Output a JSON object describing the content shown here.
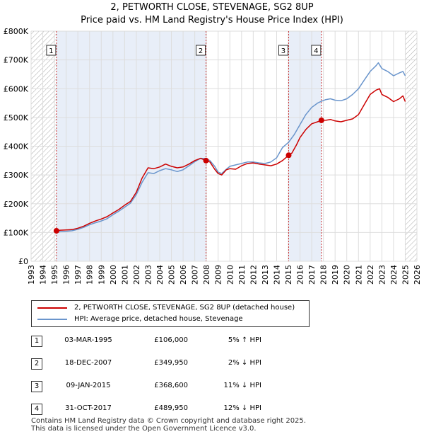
{
  "title": {
    "line1": "2, PETWORTH CLOSE, STEVENAGE, SG2 8UP",
    "line2": "Price paid vs. HM Land Registry's House Price Index (HPI)"
  },
  "colors": {
    "property": "#cc0000",
    "hpi": "#6a95cc",
    "marker_line": "#cc3333",
    "shade": "#e8eef8",
    "hatch": "#999999",
    "grid": "#dddddd"
  },
  "legend": {
    "property_label": "2, PETWORTH CLOSE, STEVENAGE, SG2 8UP (detached house)",
    "hpi_label": "HPI: Average price, detached house, Stevenage"
  },
  "transactions": [
    {
      "num": "1",
      "date": "03-MAR-1995",
      "price": "£106,000",
      "hpi": "5% ↑ HPI"
    },
    {
      "num": "2",
      "date": "18-DEC-2007",
      "price": "£349,950",
      "hpi": "2% ↓ HPI"
    },
    {
      "num": "3",
      "date": "09-JAN-2015",
      "price": "£368,600",
      "hpi": "11% ↓ HPI"
    },
    {
      "num": "4",
      "date": "31-OCT-2017",
      "price": "£489,950",
      "hpi": "12% ↓ HPI"
    }
  ],
  "footer": {
    "line1": "Contains HM Land Registry data © Crown copyright and database right 2025.",
    "line2": "This data is licensed under the Open Government Licence v3.0."
  },
  "chart_data": {
    "type": "line",
    "title": "2, PETWORTH CLOSE, STEVENAGE, SG2 8UP — Price paid vs. HM Land Registry's House Price Index (HPI)",
    "xlabel": "",
    "ylabel": "",
    "xlim": [
      1993,
      2026
    ],
    "ylim": [
      0,
      800000
    ],
    "x_ticks": [
      "1993",
      "1994",
      "1995",
      "1996",
      "1997",
      "1998",
      "1999",
      "2000",
      "2001",
      "2002",
      "2003",
      "2004",
      "2005",
      "2006",
      "2007",
      "2008",
      "2009",
      "2010",
      "2011",
      "2012",
      "2013",
      "2014",
      "2015",
      "2016",
      "2017",
      "2018",
      "2019",
      "2020",
      "2021",
      "2022",
      "2023",
      "2024",
      "2025",
      "2026"
    ],
    "y_ticks": [
      {
        "value": 0,
        "label": "£0"
      },
      {
        "value": 100000,
        "label": "£100K"
      },
      {
        "value": 200000,
        "label": "£200K"
      },
      {
        "value": 300000,
        "label": "£300K"
      },
      {
        "value": 400000,
        "label": "£400K"
      },
      {
        "value": 500000,
        "label": "£500K"
      },
      {
        "value": 600000,
        "label": "£600K"
      },
      {
        "value": 700000,
        "label": "£700K"
      },
      {
        "value": 800000,
        "label": "£800K"
      }
    ],
    "hatched_ranges": [
      [
        1993,
        1995.17
      ],
      [
        2025.0,
        2026
      ]
    ],
    "series": [
      {
        "name": "2, PETWORTH CLOSE, STEVENAGE, SG2 8UP (detached house)",
        "color": "#cc0000",
        "points": [
          [
            1995.17,
            106000
          ],
          [
            1995.5,
            108000
          ],
          [
            1996,
            109000
          ],
          [
            1996.5,
            110000
          ],
          [
            1997,
            115000
          ],
          [
            1997.5,
            122000
          ],
          [
            1998,
            132000
          ],
          [
            1998.5,
            140000
          ],
          [
            1999,
            147000
          ],
          [
            1999.5,
            155000
          ],
          [
            2000,
            168000
          ],
          [
            2000.5,
            180000
          ],
          [
            2001,
            195000
          ],
          [
            2001.5,
            208000
          ],
          [
            2002,
            240000
          ],
          [
            2002.5,
            290000
          ],
          [
            2003,
            325000
          ],
          [
            2003.5,
            322000
          ],
          [
            2004,
            328000
          ],
          [
            2004.5,
            338000
          ],
          [
            2005,
            330000
          ],
          [
            2005.5,
            325000
          ],
          [
            2006,
            328000
          ],
          [
            2006.5,
            338000
          ],
          [
            2007,
            350000
          ],
          [
            2007.5,
            358000
          ],
          [
            2007.96,
            349950
          ],
          [
            2008.3,
            345000
          ],
          [
            2008.7,
            320000
          ],
          [
            2009,
            305000
          ],
          [
            2009.3,
            300000
          ],
          [
            2009.7,
            318000
          ],
          [
            2010,
            322000
          ],
          [
            2010.5,
            320000
          ],
          [
            2011,
            332000
          ],
          [
            2011.5,
            340000
          ],
          [
            2012,
            342000
          ],
          [
            2012.5,
            338000
          ],
          [
            2013,
            335000
          ],
          [
            2013.5,
            332000
          ],
          [
            2014,
            338000
          ],
          [
            2014.5,
            350000
          ],
          [
            2015.03,
            368600
          ],
          [
            2015.3,
            376000
          ],
          [
            2015.7,
            405000
          ],
          [
            2016,
            430000
          ],
          [
            2016.5,
            458000
          ],
          [
            2017,
            478000
          ],
          [
            2017.5,
            485000
          ],
          [
            2017.83,
            489950
          ],
          [
            2018.2,
            490000
          ],
          [
            2018.6,
            493000
          ],
          [
            2019,
            488000
          ],
          [
            2019.5,
            485000
          ],
          [
            2020,
            490000
          ],
          [
            2020.5,
            495000
          ],
          [
            2021,
            510000
          ],
          [
            2021.5,
            545000
          ],
          [
            2022,
            580000
          ],
          [
            2022.5,
            595000
          ],
          [
            2022.8,
            600000
          ],
          [
            2023,
            580000
          ],
          [
            2023.5,
            570000
          ],
          [
            2024,
            555000
          ],
          [
            2024.5,
            565000
          ],
          [
            2024.8,
            575000
          ],
          [
            2025.0,
            555000
          ]
        ]
      },
      {
        "name": "HPI: Average price, detached house, Stevenage",
        "color": "#6a95cc",
        "points": [
          [
            1995.17,
            101000
          ],
          [
            1995.5,
            103000
          ],
          [
            1996,
            104000
          ],
          [
            1996.5,
            106000
          ],
          [
            1997,
            111000
          ],
          [
            1997.5,
            118000
          ],
          [
            1998,
            127000
          ],
          [
            1998.5,
            134000
          ],
          [
            1999,
            140000
          ],
          [
            1999.5,
            148000
          ],
          [
            2000,
            162000
          ],
          [
            2000.5,
            174000
          ],
          [
            2001,
            188000
          ],
          [
            2001.5,
            202000
          ],
          [
            2002,
            232000
          ],
          [
            2002.5,
            275000
          ],
          [
            2003,
            308000
          ],
          [
            2003.5,
            305000
          ],
          [
            2004,
            315000
          ],
          [
            2004.5,
            322000
          ],
          [
            2005,
            318000
          ],
          [
            2005.5,
            312000
          ],
          [
            2006,
            318000
          ],
          [
            2006.5,
            332000
          ],
          [
            2007,
            346000
          ],
          [
            2007.5,
            358000
          ],
          [
            2007.96,
            357000
          ],
          [
            2008.3,
            350000
          ],
          [
            2008.7,
            330000
          ],
          [
            2009,
            310000
          ],
          [
            2009.3,
            305000
          ],
          [
            2009.7,
            320000
          ],
          [
            2010,
            330000
          ],
          [
            2010.5,
            335000
          ],
          [
            2011,
            340000
          ],
          [
            2011.5,
            345000
          ],
          [
            2012,
            345000
          ],
          [
            2012.5,
            342000
          ],
          [
            2013,
            340000
          ],
          [
            2013.5,
            345000
          ],
          [
            2014,
            360000
          ],
          [
            2014.5,
            395000
          ],
          [
            2015.03,
            414000
          ],
          [
            2015.5,
            440000
          ],
          [
            2016,
            475000
          ],
          [
            2016.5,
            510000
          ],
          [
            2017,
            535000
          ],
          [
            2017.5,
            550000
          ],
          [
            2017.83,
            556000
          ],
          [
            2018.2,
            562000
          ],
          [
            2018.6,
            565000
          ],
          [
            2019,
            560000
          ],
          [
            2019.5,
            558000
          ],
          [
            2020,
            565000
          ],
          [
            2020.5,
            580000
          ],
          [
            2021,
            600000
          ],
          [
            2021.5,
            630000
          ],
          [
            2022,
            660000
          ],
          [
            2022.5,
            680000
          ],
          [
            2022.7,
            690000
          ],
          [
            2023,
            670000
          ],
          [
            2023.5,
            660000
          ],
          [
            2024,
            645000
          ],
          [
            2024.5,
            655000
          ],
          [
            2024.8,
            660000
          ],
          [
            2025.0,
            645000
          ]
        ]
      }
    ],
    "sales": [
      {
        "label": "1",
        "x": 1995.17,
        "y": 106000
      },
      {
        "label": "2",
        "x": 2007.96,
        "y": 349950
      },
      {
        "label": "3",
        "x": 2015.03,
        "y": 368600
      },
      {
        "label": "4",
        "x": 2017.83,
        "y": 489950
      }
    ],
    "shaded_ranges": [
      [
        1995.17,
        2007.96
      ],
      [
        2015.03,
        2017.83
      ]
    ]
  }
}
